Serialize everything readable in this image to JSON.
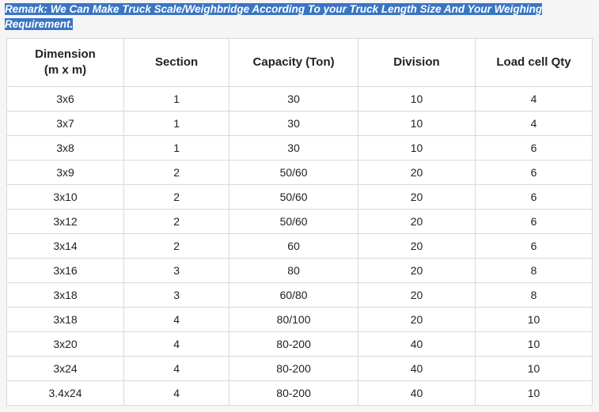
{
  "remark": {
    "label": "Remark:",
    "text_line1": " We Can Make Truck Scale/Weighbridge According To your Truck Length Size And Your Weighing",
    "text_line2": "Requirement.",
    "highlight_bg": "#3a75c4",
    "highlight_fg": "#ffffff",
    "font_style": "italic",
    "font_weight": "bold",
    "base_color": "#2a5a8a"
  },
  "table": {
    "type": "table",
    "border_color": "#d9d9d9",
    "header_bg": "#ffffff",
    "row_bg": "#ffffff",
    "text_color": "#222222",
    "header_fontsize": 15,
    "cell_fontsize": 14,
    "columns": [
      {
        "label_line1": "Dimension",
        "label_line2": "(m x m)",
        "width_pct": 20,
        "align": "center"
      },
      {
        "label_line1": "Section",
        "label_line2": "",
        "width_pct": 18,
        "align": "center"
      },
      {
        "label_line1": "Capacity (Ton)",
        "label_line2": "",
        "width_pct": 22,
        "align": "center"
      },
      {
        "label_line1": "Division",
        "label_line2": "",
        "width_pct": 20,
        "align": "center"
      },
      {
        "label_line1": "Load cell Qty",
        "label_line2": "",
        "width_pct": 20,
        "align": "center"
      }
    ],
    "rows": [
      [
        "3x6",
        "1",
        "30",
        "10",
        "4"
      ],
      [
        "3x7",
        "1",
        "30",
        "10",
        "4"
      ],
      [
        "3x8",
        "1",
        "30",
        "10",
        "6"
      ],
      [
        "3x9",
        "2",
        "50/60",
        "20",
        "6"
      ],
      [
        "3x10",
        "2",
        "50/60",
        "20",
        "6"
      ],
      [
        "3x12",
        "2",
        "50/60",
        "20",
        "6"
      ],
      [
        "3x14",
        "2",
        "60",
        "20",
        "6"
      ],
      [
        "3x16",
        "3",
        "80",
        "20",
        "8"
      ],
      [
        "3x18",
        "3",
        "60/80",
        "20",
        "8"
      ],
      [
        "3x18",
        "4",
        "80/100",
        "20",
        "10"
      ],
      [
        "3x20",
        "4",
        "80-200",
        "40",
        "10"
      ],
      [
        "3x24",
        "4",
        "80-200",
        "40",
        "10"
      ],
      [
        "3.4x24",
        "4",
        "80-200",
        "40",
        "10"
      ]
    ]
  }
}
